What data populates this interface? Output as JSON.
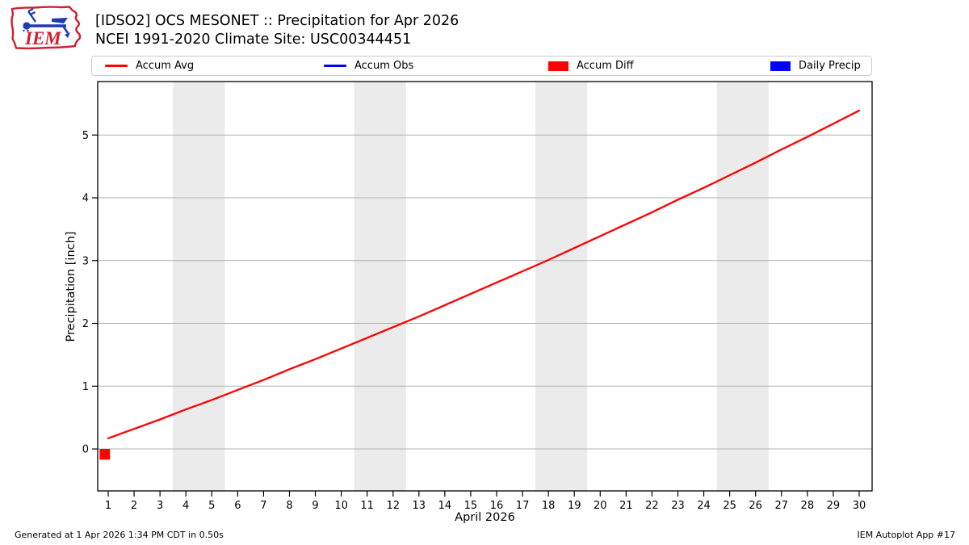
{
  "logo": {
    "text": "IEM"
  },
  "legend": {
    "entries": [
      {
        "label": "Accum Avg",
        "swatch": "line",
        "color": "#ff0000"
      },
      {
        "label": "Accum Obs",
        "swatch": "line",
        "color": "#0000ff"
      },
      {
        "label": "Accum Diff",
        "swatch": "box",
        "color": "#ff0000"
      },
      {
        "label": "Daily Precip",
        "swatch": "box",
        "color": "#0000ff"
      }
    ]
  },
  "chart_data": {
    "type": "line",
    "title": "[IDSO2] OCS MESONET :: Precipitation for Apr 2026",
    "subtitle": "NCEI 1991-2020 Climate Site: USC00344451",
    "xlabel": "April 2026",
    "ylabel": "Precipitation [inch]",
    "xlim": [
      0.595,
      30.5
    ],
    "ylim": [
      -0.668,
      5.852
    ],
    "xticks": [
      1,
      2,
      3,
      4,
      5,
      6,
      7,
      8,
      9,
      10,
      11,
      12,
      13,
      14,
      15,
      16,
      17,
      18,
      19,
      20,
      21,
      22,
      23,
      24,
      25,
      26,
      27,
      28,
      29,
      30
    ],
    "yticks": [
      0,
      1,
      2,
      3,
      4,
      5
    ],
    "grid": "horizontal",
    "grid_color": "#b0b0b0",
    "band_color": "#ebebeb",
    "weekend_bands": [
      [
        3.5,
        5.5
      ],
      [
        10.5,
        12.5
      ],
      [
        17.5,
        19.5
      ],
      [
        24.5,
        26.5
      ]
    ],
    "series": [
      {
        "name": "Accum Avg",
        "type": "line",
        "color": "#ff0000",
        "x": [
          1,
          2,
          3,
          4,
          5,
          6,
          7,
          8,
          9,
          10,
          11,
          12,
          13,
          14,
          15,
          16,
          17,
          18,
          19,
          20,
          21,
          22,
          23,
          24,
          25,
          26,
          27,
          28,
          29,
          30
        ],
        "values": [
          0.17,
          0.32,
          0.47,
          0.63,
          0.78,
          0.94,
          1.1,
          1.27,
          1.43,
          1.6,
          1.77,
          1.94,
          2.11,
          2.29,
          2.47,
          2.65,
          2.83,
          3.01,
          3.2,
          3.39,
          3.58,
          3.77,
          3.97,
          4.16,
          4.36,
          4.56,
          4.77,
          4.97,
          5.18,
          5.39
        ]
      },
      {
        "name": "Accum Obs",
        "type": "line",
        "color": "#0000ff",
        "x": [],
        "values": []
      },
      {
        "name": "Accum Diff",
        "type": "bar",
        "color": "#ff0000",
        "points": [
          {
            "x": 1,
            "value": -0.17,
            "span": [
              0.67,
              1.07
            ]
          }
        ]
      },
      {
        "name": "Daily Precip",
        "type": "bar",
        "color": "#0000ff",
        "points": []
      }
    ]
  },
  "footer": {
    "generated": "Generated at 1 Apr 2026 1:34 PM CDT in 0.50s",
    "app": "IEM Autoplot App #17"
  }
}
